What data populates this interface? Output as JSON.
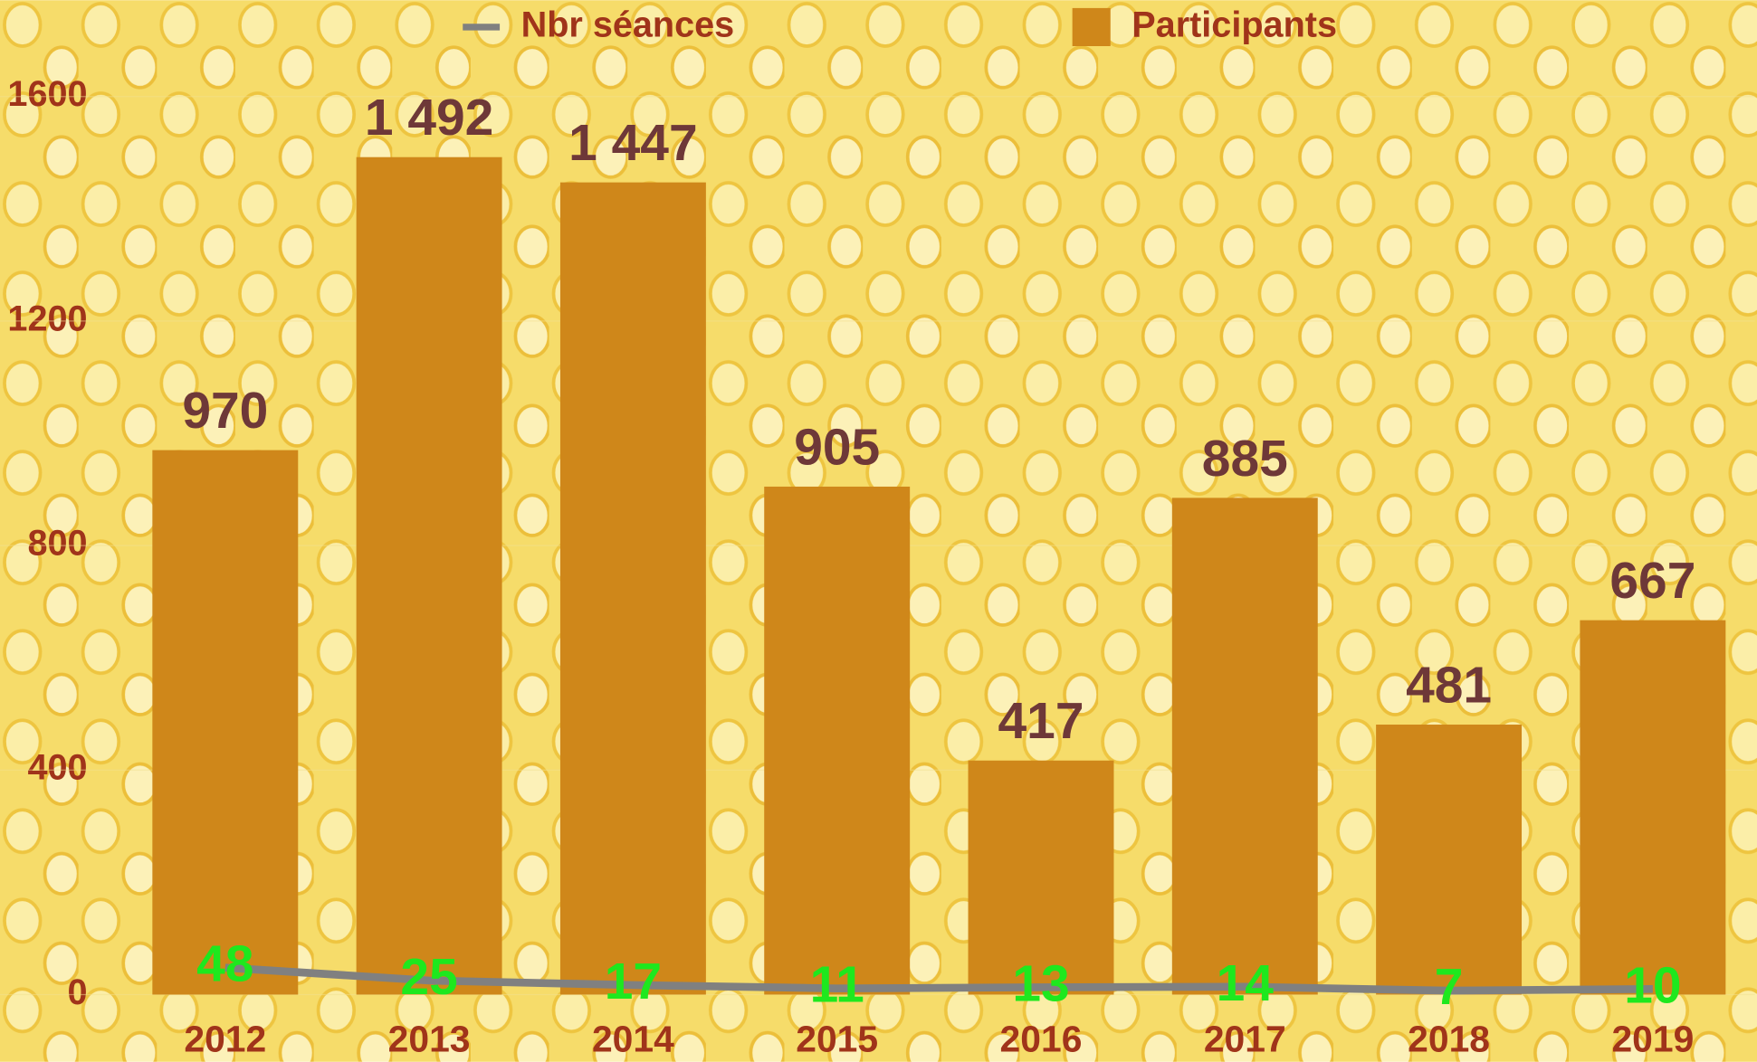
{
  "chart_data": {
    "type": "bar_line",
    "categories": [
      "2012",
      "2013",
      "2014",
      "2015",
      "2016",
      "2017",
      "2018",
      "2019"
    ],
    "series": [
      {
        "name": "Participants",
        "type": "bar",
        "color": "#cf871a",
        "values": [
          970,
          1492,
          1447,
          905,
          417,
          885,
          481,
          667
        ],
        "value_labels": [
          "970",
          "1 492",
          "1 447",
          "905",
          "417",
          "885",
          "481",
          "667"
        ]
      },
      {
        "name": "Nbr séances",
        "type": "line",
        "color": "#808080",
        "values": [
          48,
          25,
          17,
          11,
          13,
          14,
          7,
          10
        ]
      }
    ],
    "ylim": [
      0,
      1600
    ],
    "yticks": [
      0,
      400,
      800,
      1200,
      1600
    ],
    "grid": true
  }
}
